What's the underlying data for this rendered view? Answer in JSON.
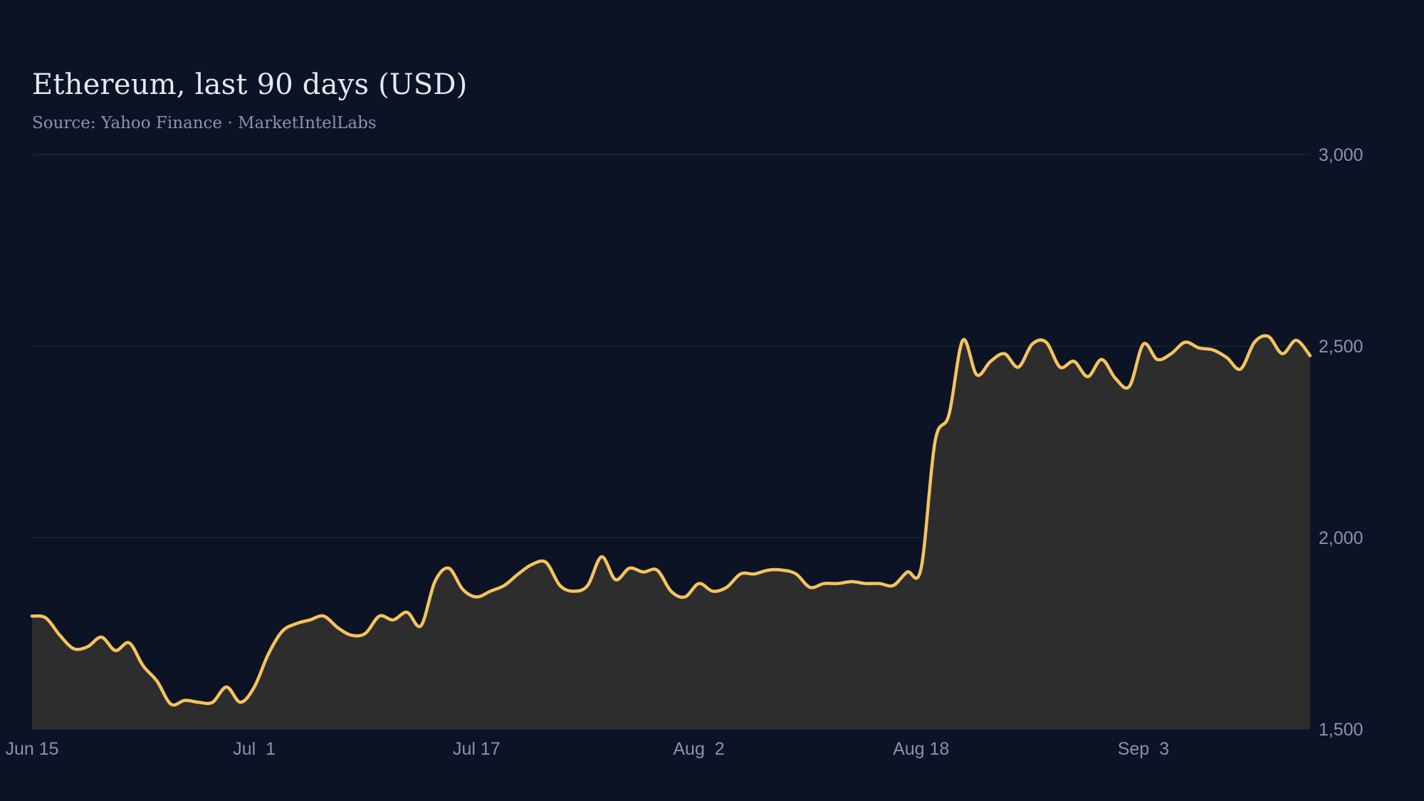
{
  "colors": {
    "background": "#0c1324",
    "line": "#f5c35f",
    "area_fill": "#2d2d2d",
    "grid": "#1f2738",
    "text_primary": "#e4e8f1",
    "text_muted": "#8a93a8"
  },
  "chart_data": {
    "type": "area",
    "title": "Ethereum, last 90 days (USD)",
    "subtitle": "Source: Yahoo Finance · MarketIntelLabs",
    "xlabel": "",
    "ylabel": "",
    "grid": true,
    "y_axis_position": "right",
    "ylim": [
      1500,
      3000
    ],
    "y_ticks": [
      1500,
      2000,
      2500,
      3000
    ],
    "y_tick_labels": [
      "1,500",
      "2,000",
      "2,500",
      "3,000"
    ],
    "x_ticks": [
      {
        "date": "2024-06-15",
        "label": "Jun 15"
      },
      {
        "date": "2024-07-01",
        "label": "Jul  1"
      },
      {
        "date": "2024-07-17",
        "label": "Jul 17"
      },
      {
        "date": "2024-08-02",
        "label": "Aug  2"
      },
      {
        "date": "2024-08-18",
        "label": "Aug 18"
      },
      {
        "date": "2024-09-03",
        "label": "Sep  3"
      }
    ],
    "x_range": [
      "2024-06-15",
      "2024-09-15"
    ],
    "series": [
      {
        "points": [
          [
            "2024-06-15",
            1795
          ],
          [
            "2024-06-16",
            1790
          ],
          [
            "2024-06-17",
            1745
          ],
          [
            "2024-06-18",
            1710
          ],
          [
            "2024-06-19",
            1715
          ],
          [
            "2024-06-20",
            1740
          ],
          [
            "2024-06-21",
            1705
          ],
          [
            "2024-06-22",
            1725
          ],
          [
            "2024-06-23",
            1665
          ],
          [
            "2024-06-24",
            1625
          ],
          [
            "2024-06-25",
            1565
          ],
          [
            "2024-06-26",
            1575
          ],
          [
            "2024-06-27",
            1570
          ],
          [
            "2024-06-28",
            1570
          ],
          [
            "2024-06-29",
            1610
          ],
          [
            "2024-06-30",
            1570
          ],
          [
            "2024-07-01",
            1610
          ],
          [
            "2024-07-02",
            1695
          ],
          [
            "2024-07-03",
            1755
          ],
          [
            "2024-07-04",
            1775
          ],
          [
            "2024-07-05",
            1785
          ],
          [
            "2024-07-06",
            1795
          ],
          [
            "2024-07-07",
            1765
          ],
          [
            "2024-07-08",
            1745
          ],
          [
            "2024-07-09",
            1750
          ],
          [
            "2024-07-10",
            1795
          ],
          [
            "2024-07-11",
            1785
          ],
          [
            "2024-07-12",
            1805
          ],
          [
            "2024-07-13",
            1770
          ],
          [
            "2024-07-14",
            1885
          ],
          [
            "2024-07-15",
            1920
          ],
          [
            "2024-07-16",
            1865
          ],
          [
            "2024-07-17",
            1845
          ],
          [
            "2024-07-18",
            1860
          ],
          [
            "2024-07-19",
            1875
          ],
          [
            "2024-07-20",
            1905
          ],
          [
            "2024-07-21",
            1930
          ],
          [
            "2024-07-22",
            1935
          ],
          [
            "2024-07-23",
            1875
          ],
          [
            "2024-07-24",
            1860
          ],
          [
            "2024-07-25",
            1875
          ],
          [
            "2024-07-26",
            1950
          ],
          [
            "2024-07-27",
            1890
          ],
          [
            "2024-07-28",
            1920
          ],
          [
            "2024-07-29",
            1910
          ],
          [
            "2024-07-30",
            1915
          ],
          [
            "2024-07-31",
            1860
          ],
          [
            "2024-08-01",
            1845
          ],
          [
            "2024-08-02",
            1880
          ],
          [
            "2024-08-03",
            1860
          ],
          [
            "2024-08-04",
            1870
          ],
          [
            "2024-08-05",
            1905
          ],
          [
            "2024-08-06",
            1905
          ],
          [
            "2024-08-07",
            1915
          ],
          [
            "2024-08-08",
            1915
          ],
          [
            "2024-08-09",
            1905
          ],
          [
            "2024-08-10",
            1870
          ],
          [
            "2024-08-11",
            1880
          ],
          [
            "2024-08-12",
            1880
          ],
          [
            "2024-08-13",
            1885
          ],
          [
            "2024-08-14",
            1880
          ],
          [
            "2024-08-15",
            1880
          ],
          [
            "2024-08-16",
            1875
          ],
          [
            "2024-08-17",
            1910
          ],
          [
            "2024-08-18",
            1920
          ],
          [
            "2024-08-19",
            2250
          ],
          [
            "2024-08-20",
            2320
          ],
          [
            "2024-08-21",
            2515
          ],
          [
            "2024-08-22",
            2425
          ],
          [
            "2024-08-23",
            2460
          ],
          [
            "2024-08-24",
            2480
          ],
          [
            "2024-08-25",
            2445
          ],
          [
            "2024-08-26",
            2505
          ],
          [
            "2024-08-27",
            2510
          ],
          [
            "2024-08-28",
            2445
          ],
          [
            "2024-08-29",
            2460
          ],
          [
            "2024-08-30",
            2420
          ],
          [
            "2024-08-31",
            2465
          ],
          [
            "2024-09-01",
            2415
          ],
          [
            "2024-09-02",
            2395
          ],
          [
            "2024-09-03",
            2505
          ],
          [
            "2024-09-04",
            2465
          ],
          [
            "2024-09-05",
            2480
          ],
          [
            "2024-09-06",
            2510
          ],
          [
            "2024-09-07",
            2495
          ],
          [
            "2024-09-08",
            2490
          ],
          [
            "2024-09-09",
            2470
          ],
          [
            "2024-09-10",
            2440
          ],
          [
            "2024-09-11",
            2510
          ],
          [
            "2024-09-12",
            2525
          ],
          [
            "2024-09-13",
            2480
          ],
          [
            "2024-09-14",
            2515
          ],
          [
            "2024-09-15",
            2475
          ]
        ]
      }
    ]
  }
}
